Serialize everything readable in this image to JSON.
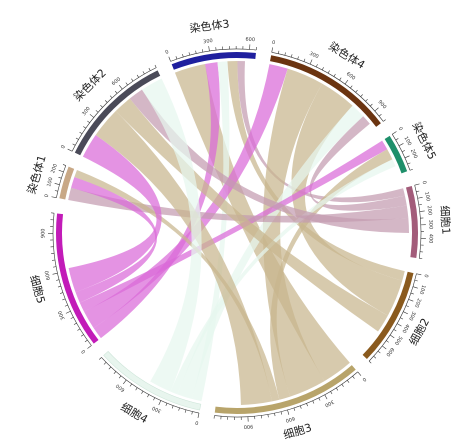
{
  "chart_data": {
    "type": "chord",
    "title": "",
    "segments": [
      {
        "id": "chr3",
        "label": "染色体3",
        "size": 650,
        "ticks": [
          0,
          300,
          600
        ],
        "color": "#1f1f9e"
      },
      {
        "id": "chr4",
        "label": "染色体4",
        "size": 1000,
        "ticks": [
          0,
          300,
          600,
          900
        ],
        "color": "#6b3410"
      },
      {
        "id": "chr5",
        "label": "染色体5",
        "size": 300,
        "ticks": [
          0,
          100,
          200
        ],
        "color": "#1e8f6a"
      },
      {
        "id": "cell1",
        "label": "细胞1",
        "size": 550,
        "ticks": [
          0,
          100,
          200,
          300,
          400
        ],
        "color": "#a35c7a"
      },
      {
        "id": "cell2",
        "label": "细胞2",
        "size": 750,
        "ticks": [
          0,
          100,
          200,
          300,
          400,
          500,
          600
        ],
        "color": "#8a5a1e"
      },
      {
        "id": "cell3",
        "label": "细胞3",
        "size": 1150,
        "ticks": [
          0,
          300,
          600,
          900
        ],
        "color": "#b8a46a"
      },
      {
        "id": "cell4",
        "label": "细胞4",
        "size": 850,
        "ticks": [
          0,
          300,
          600
        ],
        "color": "#e8f5ee"
      },
      {
        "id": "cell5",
        "label": "细胞5",
        "size": 1050,
        "ticks": [
          0,
          300,
          600,
          900
        ],
        "color": "#c21bb8"
      },
      {
        "id": "chr1",
        "label": "染色体1",
        "size": 250,
        "ticks": [
          0,
          100,
          200
        ],
        "color": "#c8a886"
      },
      {
        "id": "chr2",
        "label": "染色体2",
        "size": 900,
        "ticks": [
          0,
          300,
          600
        ],
        "color": "#4a4a58"
      }
    ],
    "links": [
      {
        "source": "chr3",
        "target": "cell3",
        "value": 250,
        "color": "#c8b68e"
      },
      {
        "source": "chr3",
        "target": "cell5",
        "value": 100,
        "color": "#d96ad8"
      },
      {
        "source": "chr3",
        "target": "cell4",
        "value": 80,
        "color": "#e6f6ee"
      },
      {
        "source": "chr3",
        "target": "cell2",
        "value": 80,
        "color": "#c8b68e"
      },
      {
        "source": "chr3",
        "target": "cell1",
        "value": 60,
        "color": "#c49bb0"
      },
      {
        "source": "chr4",
        "target": "cell5",
        "value": 150,
        "color": "#d96ad8"
      },
      {
        "source": "chr4",
        "target": "cell3",
        "value": 300,
        "color": "#c8b68e"
      },
      {
        "source": "chr4",
        "target": "cell2",
        "value": 300,
        "color": "#c8b68e"
      },
      {
        "source": "chr4",
        "target": "cell4",
        "value": 120,
        "color": "#e6f6ee"
      },
      {
        "source": "chr4",
        "target": "cell1",
        "value": 80,
        "color": "#c49bb0"
      },
      {
        "source": "chr5",
        "target": "cell5",
        "value": 80,
        "color": "#d96ad8"
      },
      {
        "source": "chr5",
        "target": "cell3",
        "value": 90,
        "color": "#c8b68e"
      },
      {
        "source": "chr5",
        "target": "cell4",
        "value": 60,
        "color": "#e6f6ee"
      },
      {
        "source": "chr1",
        "target": "cell1",
        "value": 100,
        "color": "#c49bb0"
      },
      {
        "source": "chr1",
        "target": "cell5",
        "value": 90,
        "color": "#d96ad8"
      },
      {
        "source": "chr1",
        "target": "cell3",
        "value": 60,
        "color": "#c8b68e"
      },
      {
        "source": "chr2",
        "target": "cell5",
        "value": 200,
        "color": "#d96ad8"
      },
      {
        "source": "chr2",
        "target": "cell3",
        "value": 250,
        "color": "#c8b68e"
      },
      {
        "source": "chr2",
        "target": "cell2",
        "value": 150,
        "color": "#c8b68e"
      },
      {
        "source": "chr2",
        "target": "cell1",
        "value": 120,
        "color": "#c49bb0"
      },
      {
        "source": "chr2",
        "target": "cell4",
        "value": 180,
        "color": "#e6f6ee"
      }
    ]
  }
}
